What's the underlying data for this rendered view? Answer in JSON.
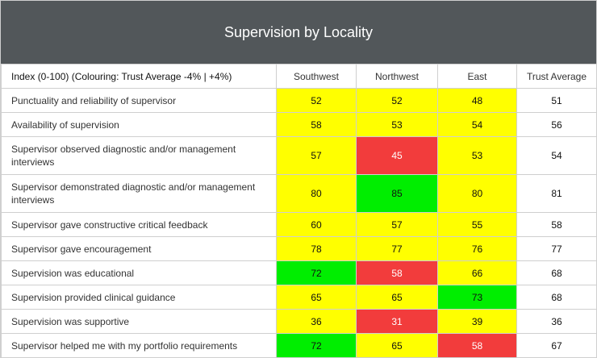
{
  "chart_data": {
    "type": "table",
    "title": "Supervision by Locality",
    "index_label": "Index (0-100) (Colouring: Trust Average -4% | +4%)",
    "columns": [
      "Southwest",
      "Northwest",
      "East",
      "Trust Average"
    ],
    "rows": [
      {
        "label": "Punctuality and reliability of supervisor",
        "values": [
          52,
          52,
          48,
          51
        ],
        "colors": [
          "yellow",
          "yellow",
          "yellow",
          "white"
        ]
      },
      {
        "label": "Availability of supervision",
        "values": [
          58,
          53,
          54,
          56
        ],
        "colors": [
          "yellow",
          "yellow",
          "yellow",
          "white"
        ]
      },
      {
        "label": "Supervisor observed diagnostic and/or management interviews",
        "values": [
          57,
          45,
          53,
          54
        ],
        "colors": [
          "yellow",
          "red",
          "yellow",
          "white"
        ]
      },
      {
        "label": "Supervisor demonstrated diagnostic and/or management interviews",
        "values": [
          80,
          85,
          80,
          81
        ],
        "colors": [
          "yellow",
          "green",
          "yellow",
          "white"
        ]
      },
      {
        "label": "Supervisor gave constructive critical feedback",
        "values": [
          60,
          57,
          55,
          58
        ],
        "colors": [
          "yellow",
          "yellow",
          "yellow",
          "white"
        ]
      },
      {
        "label": "Supervisor gave encouragement",
        "values": [
          78,
          77,
          76,
          77
        ],
        "colors": [
          "yellow",
          "yellow",
          "yellow",
          "white"
        ]
      },
      {
        "label": "Supervision was educational",
        "values": [
          72,
          58,
          66,
          68
        ],
        "colors": [
          "green",
          "red",
          "yellow",
          "white"
        ]
      },
      {
        "label": "Supervision provided clinical guidance",
        "values": [
          65,
          65,
          73,
          68
        ],
        "colors": [
          "yellow",
          "yellow",
          "green",
          "white"
        ]
      },
      {
        "label": "Supervision was supportive",
        "values": [
          36,
          31,
          39,
          36
        ],
        "colors": [
          "yellow",
          "red",
          "yellow",
          "white"
        ]
      },
      {
        "label": "Supervisor helped me with my portfolio requirements",
        "values": [
          72,
          65,
          58,
          67
        ],
        "colors": [
          "green",
          "yellow",
          "red",
          "white"
        ]
      }
    ]
  },
  "colors": {
    "header_bg": "#52575a",
    "yellow": "#ffff00",
    "red": "#f23c3c",
    "green": "#00ee00",
    "border": "#cfcfcf"
  }
}
